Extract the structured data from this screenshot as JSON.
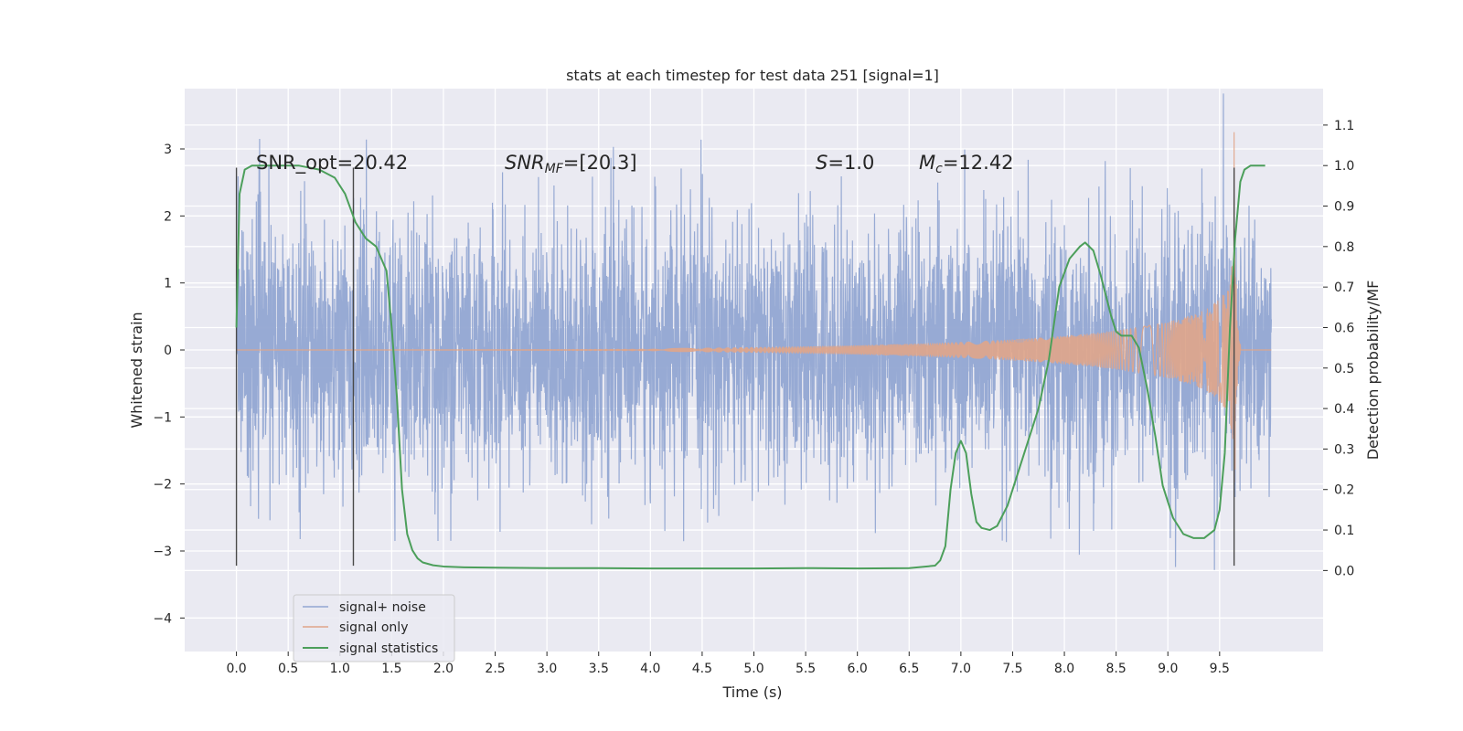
{
  "chart_data": {
    "type": "line",
    "title": "stats at each timestep for test data 251 [signal=1]",
    "xlabel": "Time (s)",
    "ylabel_left": "Whitened strain",
    "ylabel_right": "Detection probability/MF",
    "xlim": [
      -0.5,
      10.5
    ],
    "ylim_left": [
      -4.5,
      3.9
    ],
    "ylim_right": [
      -0.2,
      1.19
    ],
    "x_ticks": [
      "0.0",
      "0.5",
      "1.0",
      "1.5",
      "2.0",
      "2.5",
      "3.0",
      "3.5",
      "4.0",
      "4.5",
      "5.0",
      "5.5",
      "6.0",
      "6.5",
      "7.0",
      "7.5",
      "8.0",
      "8.5",
      "9.0",
      "9.5"
    ],
    "y_ticks_left": [
      "−4",
      "−3",
      "−2",
      "−1",
      "0",
      "1",
      "2",
      "3"
    ],
    "y_ticks_right": [
      "0.0",
      "0.1",
      "0.2",
      "0.3",
      "0.4",
      "0.5",
      "0.6",
      "0.7",
      "0.8",
      "0.9",
      "1.0",
      "1.1"
    ],
    "grid": true,
    "legend_position": "lower-left",
    "annotations": {
      "snr_opt": "SNR_opt=20.42",
      "snr_mf_italic": "SNR",
      "snr_mf_sub": "MF",
      "snr_mf_value": "=[20.3]",
      "s_italic": "S",
      "s_value": "=1.0",
      "mc_italic": "M",
      "mc_sub": "c",
      "mc_value": "=12.42"
    },
    "vertical_markers_s": [
      0.0,
      1.13,
      9.64
    ],
    "series": [
      {
        "name": "signal+ noise",
        "color": "#92a6d2",
        "description_values": "noise band approx ±1 with spikes to about ±2.8, t from 0 to 10 s",
        "x_range": [
          0,
          10
        ]
      },
      {
        "name": "signal only",
        "color": "#e0a58a",
        "x_range": [
          0,
          10
        ],
        "chirp_peak_time": 9.64,
        "chirp_peak_amplitude": 3.25
      },
      {
        "name": "signal statistics",
        "color": "#4c9f5b",
        "x": [
          0.0,
          0.03,
          0.08,
          0.15,
          0.25,
          0.4,
          0.6,
          0.8,
          0.95,
          1.05,
          1.15,
          1.25,
          1.35,
          1.45,
          1.5,
          1.55,
          1.6,
          1.65,
          1.7,
          1.75,
          1.8,
          1.9,
          2.0,
          2.2,
          2.5,
          3.0,
          3.5,
          4.0,
          4.5,
          5.0,
          5.5,
          6.0,
          6.5,
          6.75,
          6.8,
          6.85,
          6.9,
          6.95,
          7.0,
          7.05,
          7.1,
          7.15,
          7.2,
          7.28,
          7.35,
          7.45,
          7.6,
          7.75,
          7.85,
          7.95,
          8.05,
          8.15,
          8.2,
          8.28,
          8.35,
          8.45,
          8.5,
          8.55,
          8.65,
          8.72,
          8.8,
          8.88,
          8.95,
          9.05,
          9.15,
          9.25,
          9.35,
          9.45,
          9.5,
          9.55,
          9.6,
          9.65,
          9.7,
          9.74,
          9.8,
          9.9,
          9.94
        ],
        "y": [
          0.6,
          0.93,
          0.99,
          1.0,
          1.0,
          1.0,
          1.0,
          0.99,
          0.97,
          0.93,
          0.86,
          0.82,
          0.8,
          0.74,
          0.6,
          0.43,
          0.2,
          0.09,
          0.05,
          0.03,
          0.02,
          0.013,
          0.01,
          0.008,
          0.007,
          0.006,
          0.006,
          0.005,
          0.005,
          0.005,
          0.006,
          0.005,
          0.006,
          0.012,
          0.025,
          0.06,
          0.2,
          0.29,
          0.32,
          0.29,
          0.19,
          0.12,
          0.105,
          0.1,
          0.11,
          0.16,
          0.28,
          0.4,
          0.52,
          0.7,
          0.77,
          0.8,
          0.81,
          0.79,
          0.73,
          0.63,
          0.59,
          0.58,
          0.58,
          0.55,
          0.45,
          0.33,
          0.21,
          0.13,
          0.09,
          0.08,
          0.08,
          0.1,
          0.15,
          0.29,
          0.6,
          0.82,
          0.96,
          0.99,
          1.0,
          1.0,
          1.0
        ]
      }
    ]
  }
}
